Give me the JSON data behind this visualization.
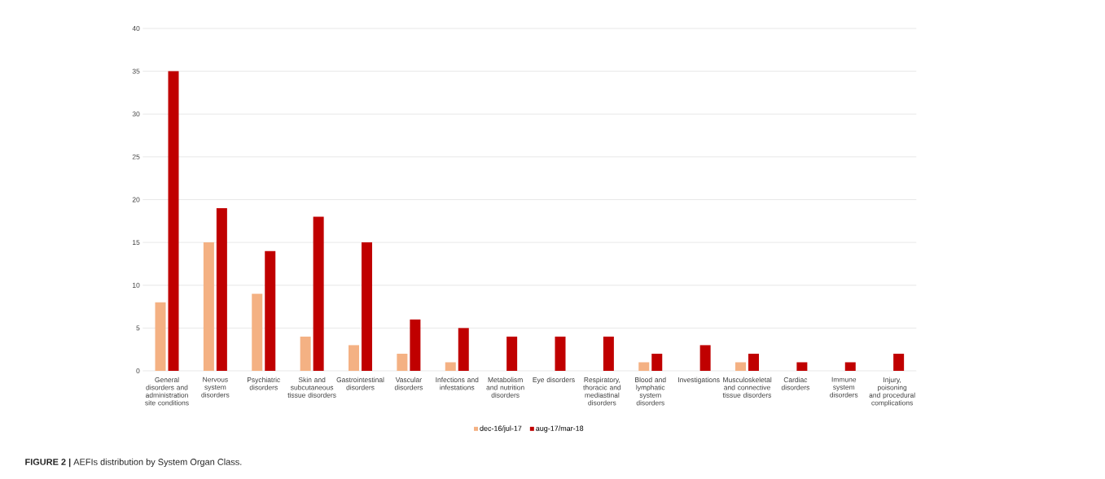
{
  "chart_data": {
    "type": "bar",
    "categories": [
      "General disorders and administration site conditions",
      "Nervous system disorders",
      "Psychiatric disorders",
      "Skin and subcutaneous tissue disorders",
      "Gastrointestinal disorders",
      "Vascular disorders",
      "Infections and infestations",
      "Metabolism and nutrition disorders",
      "Eye disorders",
      "Respiratory, thoracic and mediastinal disorders",
      "Blood and lymphatic system disorders",
      "Investigations",
      "Musculoskeletal and connective tissue disorders",
      "Cardiac disorders",
      "Immune system disorders",
      "Injury, poisoning and procedural complications"
    ],
    "series": [
      {
        "name": "dec-16/jul-17",
        "color": "#f4b183",
        "values": [
          8,
          15,
          9,
          4,
          3,
          2,
          1,
          0,
          0,
          0,
          1,
          0,
          1,
          0,
          0,
          0
        ]
      },
      {
        "name": "aug-17/mar-18",
        "color": "#c00000",
        "values": [
          35,
          19,
          14,
          18,
          15,
          6,
          5,
          4,
          4,
          4,
          2,
          3,
          2,
          1,
          1,
          2
        ]
      }
    ],
    "ylim": [
      0,
      40
    ],
    "yticks": [
      0,
      5,
      10,
      15,
      20,
      25,
      30,
      35,
      40
    ],
    "grid": "y",
    "legend": "bottom",
    "annotations": [
      "**FIGURE 2 |** AEFIs distribution by System Organ Class."
    ]
  }
}
